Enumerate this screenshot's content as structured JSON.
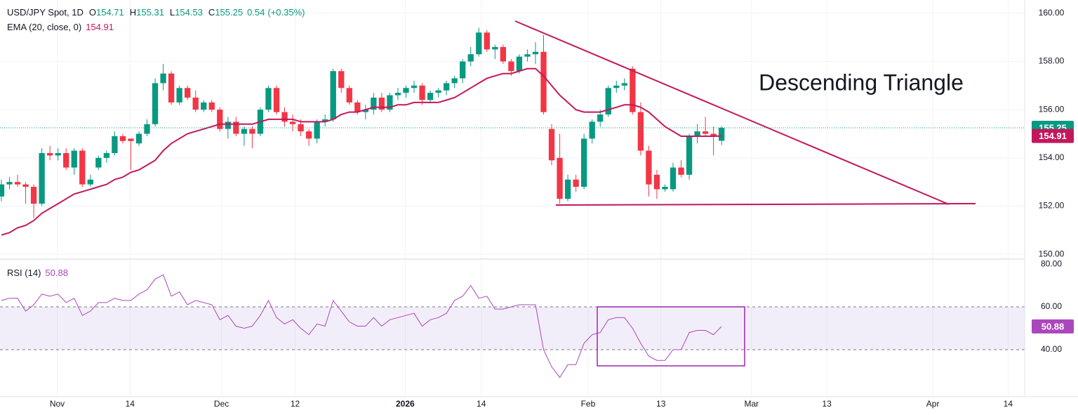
{
  "chart_data": [
    {
      "type": "candlestick",
      "title": "USD/JPY Spot, 1D",
      "ohlc_labels": [
        "O",
        "H",
        "L",
        "C"
      ],
      "change": 0.54,
      "change_label": "(+0.35%)",
      "annotation": "Descending Triangle",
      "up_color": "#089981",
      "down_color": "#f23645",
      "xlim": [
        -0.17,
        126.45
      ],
      "xticks": [
        {
          "value": 6.9,
          "label": "Nov"
        },
        {
          "value": 15.9,
          "label": "14"
        },
        {
          "value": 27.2,
          "label": "Dec"
        },
        {
          "value": 36.3,
          "label": "12"
        },
        {
          "value": 49.9,
          "label": "2026"
        },
        {
          "value": 59.3,
          "label": "14"
        },
        {
          "value": 72.5,
          "label": "Feb"
        },
        {
          "value": 81.5,
          "label": "13"
        },
        {
          "value": 92.7,
          "label": "Mar"
        },
        {
          "value": 102,
          "label": "13"
        },
        {
          "value": 115.1,
          "label": "Apr"
        },
        {
          "value": 124.4,
          "label": "14"
        }
      ],
      "ylim": [
        149.83,
        160.55
      ],
      "yticks": [
        {
          "value": 150,
          "label": "150.00"
        },
        {
          "value": 152,
          "label": "152.00"
        },
        {
          "value": 154,
          "label": "154.00"
        },
        {
          "value": 156,
          "label": "156.00"
        },
        {
          "value": 158,
          "label": "158.00"
        },
        {
          "value": 160,
          "label": "160.00"
        }
      ],
      "grid": true,
      "open": [
        152.4,
        152.9,
        153.0,
        152.9,
        152.8,
        152.1,
        154.2,
        154.1,
        154.2,
        153.6,
        154.3,
        152.9,
        153.6,
        154.0,
        154.2,
        154.9,
        154.8,
        154.6,
        155.0,
        155.4,
        157.1,
        157.5,
        156.3,
        156.9,
        156.5,
        156.0,
        156.3,
        156.0,
        155.2,
        155.5,
        155.0,
        155.2,
        155.0,
        156.0,
        156.9,
        155.9,
        155.5,
        155.4,
        155.1,
        154.8,
        155.5,
        155.6,
        157.6,
        156.9,
        156.3,
        155.9,
        156.0,
        156.5,
        156.0,
        156.6,
        156.7,
        156.9,
        157.0,
        156.4,
        156.7,
        156.8,
        157.1,
        157.3,
        158.0,
        158.3,
        159.2,
        158.5,
        158.6,
        158.0,
        157.6,
        158.2,
        158.3,
        158.4,
        155.2,
        154.0,
        152.3,
        153.1,
        152.8,
        154.8,
        155.5,
        155.8,
        156.9,
        157.0,
        157.7,
        155.9,
        154.3,
        153.3,
        152.7,
        152.7,
        153.6,
        153.3,
        154.9,
        155.1,
        155.0,
        154.71
      ],
      "high": [
        153.1,
        153.2,
        153.3,
        153.0,
        152.9,
        154.4,
        154.5,
        154.4,
        154.4,
        154.4,
        154.4,
        153.3,
        154.1,
        154.3,
        155.1,
        155.0,
        154.8,
        155.1,
        155.6,
        157.3,
        157.9,
        157.6,
        157.0,
        157.0,
        156.8,
        156.4,
        156.4,
        156.1,
        155.7,
        155.7,
        155.3,
        155.3,
        156.1,
        157.0,
        157.0,
        156.1,
        155.8,
        155.6,
        155.2,
        155.6,
        155.8,
        157.7,
        157.7,
        157.0,
        156.4,
        156.2,
        156.7,
        156.7,
        156.7,
        156.9,
        157.0,
        157.2,
        157.1,
        156.8,
        156.9,
        157.2,
        157.4,
        158.1,
        158.6,
        159.4,
        159.3,
        158.7,
        158.7,
        158.1,
        158.3,
        158.5,
        158.8,
        159.1,
        155.4,
        155.0,
        153.3,
        153.3,
        155.0,
        155.6,
        156.0,
        157.0,
        157.2,
        157.3,
        157.8,
        156.3,
        154.5,
        153.5,
        152.9,
        153.8,
        153.9,
        155.0,
        155.4,
        155.7,
        155.3,
        155.31
      ],
      "low": [
        152.2,
        152.7,
        152.8,
        152.1,
        151.5,
        152.0,
        153.9,
        153.9,
        153.5,
        153.3,
        152.8,
        152.8,
        153.5,
        153.8,
        154.1,
        154.6,
        153.5,
        154.5,
        154.9,
        155.3,
        156.8,
        156.2,
        156.2,
        156.4,
        155.9,
        155.9,
        155.9,
        155.1,
        154.8,
        154.9,
        154.5,
        154.4,
        154.9,
        155.9,
        155.8,
        155.3,
        155.1,
        154.9,
        154.5,
        154.6,
        155.3,
        155.5,
        156.7,
        156.2,
        155.8,
        155.6,
        155.8,
        155.9,
        155.9,
        156.4,
        156.5,
        156.7,
        156.2,
        156.3,
        156.5,
        156.6,
        156.9,
        157.1,
        157.8,
        158.2,
        158.4,
        158.1,
        157.9,
        157.4,
        157.5,
        158.0,
        157.9,
        155.8,
        153.7,
        152.1,
        152.2,
        152.6,
        152.7,
        154.6,
        155.3,
        155.7,
        156.7,
        156.8,
        155.8,
        154.1,
        152.4,
        152.3,
        152.6,
        152.6,
        153.2,
        153.1,
        154.6,
        154.9,
        154.1,
        154.53
      ],
      "close": [
        152.9,
        153.0,
        152.9,
        152.8,
        152.1,
        154.2,
        154.1,
        154.2,
        153.6,
        154.3,
        152.9,
        153.1,
        154.0,
        154.2,
        154.9,
        154.7,
        154.7,
        155.0,
        155.4,
        157.1,
        157.5,
        156.3,
        156.9,
        156.5,
        156.0,
        156.3,
        156.0,
        155.2,
        155.5,
        155.0,
        155.2,
        155.0,
        156.0,
        156.9,
        155.9,
        155.5,
        155.4,
        155.1,
        154.8,
        155.5,
        155.6,
        157.6,
        156.9,
        156.3,
        155.9,
        156.0,
        156.5,
        156.0,
        156.6,
        156.7,
        156.9,
        157.0,
        156.4,
        156.7,
        156.8,
        157.1,
        157.3,
        158.0,
        158.3,
        159.2,
        158.5,
        158.6,
        158.0,
        157.6,
        158.2,
        158.3,
        158.4,
        155.9,
        153.9,
        152.3,
        153.1,
        152.8,
        154.8,
        155.5,
        155.8,
        156.9,
        157.0,
        157.1,
        155.9,
        154.3,
        152.9,
        152.7,
        152.8,
        153.6,
        153.3,
        154.9,
        155.1,
        155.0,
        154.9,
        155.25
      ],
      "series": [
        {
          "name": "EMA (20, close, 0)",
          "color": "#c2185b",
          "values": [
            150.8,
            150.9,
            151.1,
            151.2,
            151.4,
            151.7,
            151.9,
            152.1,
            152.3,
            152.5,
            152.6,
            152.7,
            152.8,
            152.9,
            153.1,
            153.2,
            153.4,
            153.5,
            153.7,
            153.9,
            154.3,
            154.6,
            154.8,
            155.0,
            155.1,
            155.2,
            155.3,
            155.4,
            155.4,
            155.4,
            155.4,
            155.4,
            155.5,
            155.6,
            155.6,
            155.6,
            155.6,
            155.5,
            155.5,
            155.5,
            155.5,
            155.6,
            155.8,
            155.9,
            155.9,
            156.0,
            156.1,
            156.1,
            156.1,
            156.2,
            156.2,
            156.3,
            156.3,
            156.3,
            156.3,
            156.4,
            156.5,
            156.7,
            156.9,
            157.1,
            157.3,
            157.4,
            157.5,
            157.5,
            157.6,
            157.7,
            157.7,
            157.4,
            157.0,
            156.6,
            156.3,
            156.0,
            155.9,
            155.9,
            155.9,
            156.0,
            156.1,
            156.2,
            156.2,
            156.1,
            155.9,
            155.6,
            155.3,
            155.1,
            154.9,
            154.9,
            154.9,
            154.9,
            154.9,
            154.91
          ]
        }
      ]
    },
    {
      "type": "line",
      "ylim": [
        18,
        82
      ],
      "yticks": [
        {
          "value": 40,
          "label": "40.00"
        },
        {
          "value": 60,
          "label": "60.00"
        },
        {
          "value": 80,
          "label": "80.00"
        }
      ],
      "band": [
        40,
        60
      ],
      "band_color": "#7e57c2",
      "series": [
        {
          "name": "RSI (14)",
          "color": "#ab47bc",
          "values": [
            63,
            64,
            64,
            58,
            61,
            66,
            65,
            66,
            62,
            64,
            56,
            58,
            62,
            62,
            64,
            63,
            63,
            66,
            68,
            73,
            75,
            65,
            67,
            61,
            63,
            62,
            61,
            54,
            56,
            51,
            50,
            51,
            56,
            63,
            55,
            52,
            54,
            50,
            47,
            52,
            51,
            63,
            58,
            53,
            51,
            51,
            55,
            51,
            54,
            55,
            56,
            57,
            51,
            54,
            55,
            57,
            63,
            65,
            70,
            64,
            65,
            59,
            59,
            60,
            61,
            61,
            61,
            40,
            32,
            27,
            33,
            33,
            43,
            47,
            48,
            54,
            55,
            55,
            50,
            43,
            37,
            35,
            35,
            40,
            40,
            48,
            49,
            49,
            47,
            50.88
          ]
        }
      ]
    }
  ]
}
